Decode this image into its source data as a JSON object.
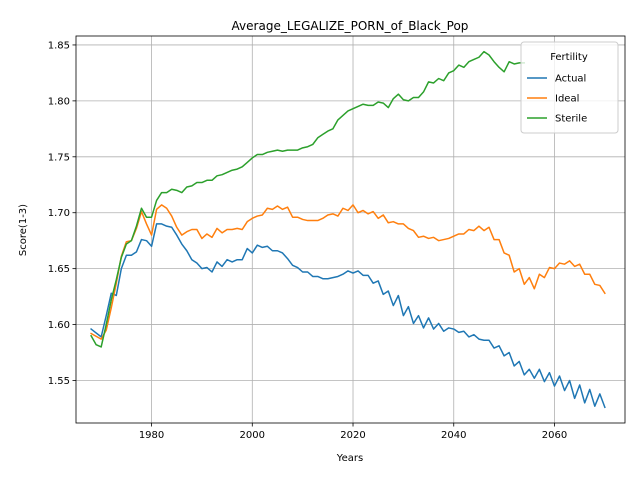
{
  "chart_data": {
    "type": "line",
    "title": "Average_LEGALIZE_PORN_of_Black_Pop",
    "xlabel": "Years",
    "ylabel": "Score(1-3)",
    "xlim": [
      1965,
      2074
    ],
    "ylim": [
      1.512,
      1.858
    ],
    "xticks": [
      1980,
      2000,
      2020,
      2040,
      2060
    ],
    "yticks": [
      1.55,
      1.6,
      1.65,
      1.7,
      1.75,
      1.8,
      1.85
    ],
    "ytick_labels": [
      "1.55",
      "1.60",
      "1.65",
      "1.70",
      "1.75",
      "1.80",
      "1.85"
    ],
    "grid": true,
    "legend": {
      "title": "Fertility",
      "placement": "top-right"
    },
    "series": [
      {
        "name": "Actual",
        "color": "#1f77b4",
        "points": [
          [
            1968,
            1.596
          ],
          [
            1970,
            1.589
          ],
          [
            1971,
            1.608
          ],
          [
            1972,
            1.628
          ],
          [
            1973,
            1.626
          ],
          [
            1974,
            1.65
          ],
          [
            1975,
            1.662
          ],
          [
            1976,
            1.662
          ],
          [
            1977,
            1.665
          ],
          [
            1978,
            1.676
          ],
          [
            1979,
            1.675
          ],
          [
            1980,
            1.67
          ],
          [
            1981,
            1.69
          ],
          [
            1982,
            1.69
          ],
          [
            1983,
            1.688
          ],
          [
            1984,
            1.687
          ],
          [
            1985,
            1.68
          ],
          [
            1986,
            1.672
          ],
          [
            1987,
            1.666
          ],
          [
            1988,
            1.658
          ],
          [
            1989,
            1.655
          ],
          [
            1990,
            1.65
          ],
          [
            1991,
            1.651
          ],
          [
            1992,
            1.647
          ],
          [
            1993,
            1.656
          ],
          [
            1994,
            1.652
          ],
          [
            1995,
            1.658
          ],
          [
            1996,
            1.656
          ],
          [
            1997,
            1.658
          ],
          [
            1998,
            1.658
          ],
          [
            1999,
            1.668
          ],
          [
            2000,
            1.664
          ],
          [
            2001,
            1.671
          ],
          [
            2002,
            1.669
          ],
          [
            2003,
            1.67
          ],
          [
            2004,
            1.666
          ],
          [
            2005,
            1.666
          ],
          [
            2006,
            1.664
          ],
          [
            2007,
            1.659
          ],
          [
            2008,
            1.653
          ],
          [
            2009,
            1.651
          ],
          [
            2010,
            1.647
          ],
          [
            2011,
            1.647
          ],
          [
            2012,
            1.643
          ],
          [
            2013,
            1.643
          ],
          [
            2014,
            1.641
          ],
          [
            2015,
            1.641
          ],
          [
            2016,
            1.642
          ],
          [
            2017,
            1.643
          ],
          [
            2018,
            1.645
          ],
          [
            2019,
            1.648
          ],
          [
            2020,
            1.646
          ],
          [
            2021,
            1.648
          ],
          [
            2022,
            1.644
          ],
          [
            2023,
            1.644
          ],
          [
            2024,
            1.637
          ],
          [
            2025,
            1.639
          ],
          [
            2026,
            1.627
          ],
          [
            2027,
            1.63
          ],
          [
            2028,
            1.617
          ],
          [
            2029,
            1.626
          ],
          [
            2030,
            1.608
          ],
          [
            2031,
            1.616
          ],
          [
            2032,
            1.601
          ],
          [
            2033,
            1.608
          ],
          [
            2034,
            1.597
          ],
          [
            2035,
            1.606
          ],
          [
            2036,
            1.596
          ],
          [
            2037,
            1.601
          ],
          [
            2038,
            1.594
          ],
          [
            2039,
            1.597
          ],
          [
            2040,
            1.596
          ],
          [
            2041,
            1.593
          ],
          [
            2042,
            1.594
          ],
          [
            2043,
            1.589
          ],
          [
            2044,
            1.591
          ],
          [
            2045,
            1.587
          ],
          [
            2046,
            1.586
          ],
          [
            2047,
            1.586
          ],
          [
            2048,
            1.579
          ],
          [
            2049,
            1.581
          ],
          [
            2050,
            1.572
          ],
          [
            2051,
            1.575
          ],
          [
            2052,
            1.563
          ],
          [
            2053,
            1.567
          ],
          [
            2054,
            1.555
          ],
          [
            2055,
            1.56
          ],
          [
            2056,
            1.552
          ],
          [
            2057,
            1.56
          ],
          [
            2058,
            1.549
          ],
          [
            2059,
            1.557
          ],
          [
            2060,
            1.545
          ],
          [
            2061,
            1.554
          ],
          [
            2062,
            1.541
          ],
          [
            2063,
            1.55
          ],
          [
            2064,
            1.534
          ],
          [
            2065,
            1.546
          ],
          [
            2066,
            1.53
          ],
          [
            2067,
            1.542
          ],
          [
            2068,
            1.527
          ],
          [
            2069,
            1.538
          ],
          [
            2070,
            1.526
          ]
        ]
      },
      {
        "name": "Ideal",
        "color": "#ff7f0e",
        "points": [
          [
            1968,
            1.592
          ],
          [
            1970,
            1.587
          ],
          [
            1971,
            1.595
          ],
          [
            1972,
            1.615
          ],
          [
            1973,
            1.637
          ],
          [
            1974,
            1.661
          ],
          [
            1975,
            1.674
          ],
          [
            1976,
            1.675
          ],
          [
            1977,
            1.686
          ],
          [
            1978,
            1.701
          ],
          [
            1979,
            1.69
          ],
          [
            1980,
            1.68
          ],
          [
            1981,
            1.703
          ],
          [
            1982,
            1.707
          ],
          [
            1983,
            1.704
          ],
          [
            1984,
            1.697
          ],
          [
            1985,
            1.687
          ],
          [
            1986,
            1.68
          ],
          [
            1987,
            1.683
          ],
          [
            1988,
            1.685
          ],
          [
            1989,
            1.685
          ],
          [
            1990,
            1.677
          ],
          [
            1991,
            1.681
          ],
          [
            1992,
            1.678
          ],
          [
            1993,
            1.686
          ],
          [
            1994,
            1.682
          ],
          [
            1995,
            1.685
          ],
          [
            1996,
            1.685
          ],
          [
            1997,
            1.686
          ],
          [
            1998,
            1.685
          ],
          [
            1999,
            1.692
          ],
          [
            2000,
            1.695
          ],
          [
            2001,
            1.697
          ],
          [
            2002,
            1.698
          ],
          [
            2003,
            1.704
          ],
          [
            2004,
            1.703
          ],
          [
            2005,
            1.706
          ],
          [
            2006,
            1.703
          ],
          [
            2007,
            1.705
          ],
          [
            2008,
            1.696
          ],
          [
            2009,
            1.696
          ],
          [
            2010,
            1.694
          ],
          [
            2011,
            1.693
          ],
          [
            2012,
            1.693
          ],
          [
            2013,
            1.693
          ],
          [
            2014,
            1.695
          ],
          [
            2015,
            1.698
          ],
          [
            2016,
            1.699
          ],
          [
            2017,
            1.697
          ],
          [
            2018,
            1.704
          ],
          [
            2019,
            1.702
          ],
          [
            2020,
            1.707
          ],
          [
            2021,
            1.7
          ],
          [
            2022,
            1.702
          ],
          [
            2023,
            1.699
          ],
          [
            2024,
            1.701
          ],
          [
            2025,
            1.695
          ],
          [
            2026,
            1.698
          ],
          [
            2027,
            1.691
          ],
          [
            2028,
            1.692
          ],
          [
            2029,
            1.69
          ],
          [
            2030,
            1.69
          ],
          [
            2031,
            1.686
          ],
          [
            2032,
            1.684
          ],
          [
            2033,
            1.678
          ],
          [
            2034,
            1.679
          ],
          [
            2035,
            1.677
          ],
          [
            2036,
            1.678
          ],
          [
            2037,
            1.675
          ],
          [
            2038,
            1.676
          ],
          [
            2039,
            1.677
          ],
          [
            2040,
            1.679
          ],
          [
            2041,
            1.681
          ],
          [
            2042,
            1.681
          ],
          [
            2043,
            1.685
          ],
          [
            2044,
            1.684
          ],
          [
            2045,
            1.688
          ],
          [
            2046,
            1.684
          ],
          [
            2047,
            1.687
          ],
          [
            2048,
            1.676
          ],
          [
            2049,
            1.676
          ],
          [
            2050,
            1.664
          ],
          [
            2051,
            1.662
          ],
          [
            2052,
            1.647
          ],
          [
            2053,
            1.65
          ],
          [
            2054,
            1.636
          ],
          [
            2055,
            1.642
          ],
          [
            2056,
            1.632
          ],
          [
            2057,
            1.645
          ],
          [
            2058,
            1.642
          ],
          [
            2059,
            1.651
          ],
          [
            2060,
            1.65
          ],
          [
            2061,
            1.655
          ],
          [
            2062,
            1.654
          ],
          [
            2063,
            1.657
          ],
          [
            2064,
            1.652
          ],
          [
            2065,
            1.654
          ],
          [
            2066,
            1.645
          ],
          [
            2067,
            1.645
          ],
          [
            2068,
            1.636
          ],
          [
            2069,
            1.635
          ],
          [
            2070,
            1.628
          ]
        ]
      },
      {
        "name": "Sterile",
        "color": "#2ca02c",
        "points": [
          [
            1968,
            1.59
          ],
          [
            1969,
            1.582
          ],
          [
            1970,
            1.58
          ],
          [
            1971,
            1.6
          ],
          [
            1972,
            1.622
          ],
          [
            1973,
            1.64
          ],
          [
            1974,
            1.66
          ],
          [
            1975,
            1.672
          ],
          [
            1976,
            1.675
          ],
          [
            1977,
            1.688
          ],
          [
            1978,
            1.704
          ],
          [
            1979,
            1.696
          ],
          [
            1980,
            1.696
          ],
          [
            1981,
            1.711
          ],
          [
            1982,
            1.718
          ],
          [
            1983,
            1.718
          ],
          [
            1984,
            1.721
          ],
          [
            1985,
            1.72
          ],
          [
            1986,
            1.718
          ],
          [
            1987,
            1.723
          ],
          [
            1988,
            1.724
          ],
          [
            1989,
            1.727
          ],
          [
            1990,
            1.727
          ],
          [
            1991,
            1.729
          ],
          [
            1992,
            1.729
          ],
          [
            1993,
            1.733
          ],
          [
            1994,
            1.734
          ],
          [
            1995,
            1.736
          ],
          [
            1996,
            1.738
          ],
          [
            1997,
            1.739
          ],
          [
            1998,
            1.741
          ],
          [
            1999,
            1.745
          ],
          [
            2000,
            1.749
          ],
          [
            2001,
            1.752
          ],
          [
            2002,
            1.752
          ],
          [
            2003,
            1.754
          ],
          [
            2004,
            1.755
          ],
          [
            2005,
            1.756
          ],
          [
            2006,
            1.755
          ],
          [
            2007,
            1.756
          ],
          [
            2008,
            1.756
          ],
          [
            2009,
            1.756
          ],
          [
            2010,
            1.758
          ],
          [
            2011,
            1.759
          ],
          [
            2012,
            1.761
          ],
          [
            2013,
            1.767
          ],
          [
            2014,
            1.77
          ],
          [
            2015,
            1.773
          ],
          [
            2016,
            1.775
          ],
          [
            2017,
            1.783
          ],
          [
            2018,
            1.787
          ],
          [
            2019,
            1.791
          ],
          [
            2020,
            1.793
          ],
          [
            2021,
            1.795
          ],
          [
            2022,
            1.797
          ],
          [
            2023,
            1.796
          ],
          [
            2024,
            1.796
          ],
          [
            2025,
            1.799
          ],
          [
            2026,
            1.798
          ],
          [
            2027,
            1.794
          ],
          [
            2028,
            1.802
          ],
          [
            2029,
            1.806
          ],
          [
            2030,
            1.801
          ],
          [
            2031,
            1.8
          ],
          [
            2032,
            1.803
          ],
          [
            2033,
            1.803
          ],
          [
            2034,
            1.808
          ],
          [
            2035,
            1.817
          ],
          [
            2036,
            1.816
          ],
          [
            2037,
            1.82
          ],
          [
            2038,
            1.818
          ],
          [
            2039,
            1.825
          ],
          [
            2040,
            1.827
          ],
          [
            2041,
            1.832
          ],
          [
            2042,
            1.83
          ],
          [
            2043,
            1.835
          ],
          [
            2044,
            1.837
          ],
          [
            2045,
            1.839
          ],
          [
            2046,
            1.844
          ],
          [
            2047,
            1.841
          ],
          [
            2048,
            1.835
          ],
          [
            2049,
            1.83
          ],
          [
            2050,
            1.826
          ],
          [
            2051,
            1.835
          ],
          [
            2052,
            1.833
          ],
          [
            2053,
            1.834
          ],
          [
            2054,
            1.834
          ]
        ]
      }
    ]
  }
}
